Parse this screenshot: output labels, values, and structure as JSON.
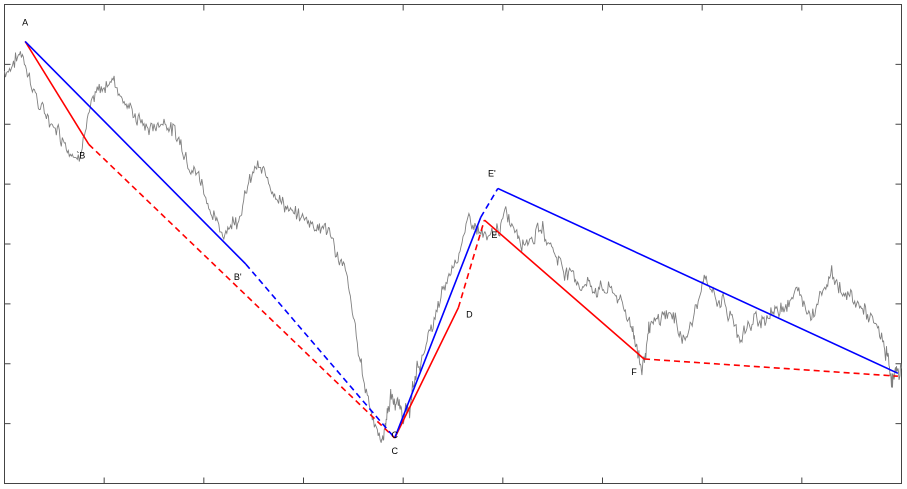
{
  "chart_data": {
    "type": "line",
    "title": "",
    "xlabel": "",
    "ylabel": "",
    "grid": false,
    "xlim": [
      0,
      100
    ],
    "ylim": [
      0,
      100
    ],
    "price_series": {
      "color": "#808080",
      "x": [
        0,
        2,
        4,
        6,
        8,
        10,
        12,
        14,
        16,
        18,
        20,
        22,
        24,
        26,
        28,
        30,
        32,
        34,
        36,
        38,
        40,
        42,
        43,
        44,
        45,
        46,
        48,
        50,
        52,
        54,
        56,
        58,
        60,
        62,
        64,
        66,
        68,
        70,
        71,
        72,
        74,
        76,
        78,
        80,
        82,
        84,
        86,
        88,
        90,
        92,
        94,
        96,
        98,
        99,
        100
      ],
      "y": [
        86,
        90,
        78,
        74,
        68,
        80,
        85,
        78,
        74,
        76,
        70,
        63,
        52,
        56,
        66,
        62,
        56,
        55,
        53,
        44,
        22,
        8,
        18,
        16,
        14,
        24,
        34,
        46,
        55,
        50,
        56,
        51,
        53,
        46,
        42,
        41,
        40,
        33,
        24,
        32,
        36,
        30,
        42,
        38,
        31,
        34,
        36,
        40,
        36,
        44,
        39,
        36,
        29,
        22,
        24
      ]
    },
    "patterns": [
      {
        "name": "red",
        "color": "#ff0000",
        "points": [
          {
            "label": "A",
            "x": 2.3,
            "y": 92.3,
            "label_dx": 0,
            "label_dy": -16
          },
          {
            "label": "`B",
            "x": 9.4,
            "y": 70.8,
            "label_dx": -8,
            "label_dy": 14
          },
          {
            "label": "C",
            "x": 43.5,
            "y": 9.5,
            "label_dx": 0,
            "label_dy": 16
          },
          {
            "label": "D",
            "x": 50.6,
            "y": 36.7,
            "label_dx": 11,
            "label_dy": 10
          },
          {
            "label": "E",
            "x": 53.5,
            "y": 55.0,
            "label_dx": 10,
            "label_dy": 18
          },
          {
            "label": "F",
            "x": 71.3,
            "y": 26.0,
            "label_dx": -10,
            "label_dy": 16
          },
          {
            "label": "",
            "x": 99.6,
            "y": 22.4,
            "label_dx": 0,
            "label_dy": 0
          }
        ],
        "segments": [
          {
            "from": 0,
            "to": 1,
            "style": "solid"
          },
          {
            "from": 1,
            "to": 2,
            "style": "dashed"
          },
          {
            "from": 2,
            "to": 3,
            "style": "solid"
          },
          {
            "from": 3,
            "to": 4,
            "style": "dashed"
          },
          {
            "from": 4,
            "to": 5,
            "style": "solid"
          },
          {
            "from": 5,
            "to": 6,
            "style": "dashed"
          }
        ]
      },
      {
        "name": "blue",
        "color": "#0000ff",
        "points": [
          {
            "label": "",
            "x": 2.3,
            "y": 92.3,
            "label_dx": 0,
            "label_dy": 0
          },
          {
            "label": "B'",
            "x": 26.9,
            "y": 45.8,
            "label_dx": -8,
            "label_dy": 16
          },
          {
            "label": "C",
            "x": 43.5,
            "y": 9.5,
            "label_dx": 0,
            "label_dy": 0
          },
          {
            "label": "",
            "x": 53.1,
            "y": 55.6,
            "label_dx": 0,
            "label_dy": 0
          },
          {
            "label": "E'",
            "x": 55.0,
            "y": 61.6,
            "label_dx": -6,
            "label_dy": -12
          },
          {
            "label": "",
            "x": 99.6,
            "y": 23.0,
            "label_dx": 0,
            "label_dy": 0
          }
        ],
        "segments": [
          {
            "from": 0,
            "to": 1,
            "style": "solid"
          },
          {
            "from": 1,
            "to": 2,
            "style": "dashed"
          },
          {
            "from": 2,
            "to": 3,
            "style": "solid"
          },
          {
            "from": 3,
            "to": 4,
            "style": "dashed"
          },
          {
            "from": 4,
            "to": 5,
            "style": "solid"
          }
        ]
      }
    ]
  }
}
